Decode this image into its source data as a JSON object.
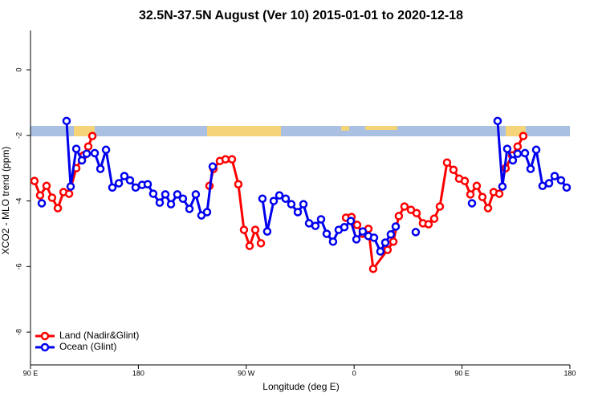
{
  "chart_data": {
    "type": "line",
    "title": "32.5N-37.5N August (Ver 10)   2015-01-01 to 2020-12-18",
    "x_label": "Longitude (deg E)",
    "y_label": "XCO2 - MLO trend (ppm)",
    "xlim": [
      90,
      540
    ],
    "ylim": [
      -9,
      1.2
    ],
    "xticks": [
      {
        "value": 90,
        "label": "90 E"
      },
      180,
      {
        "value": 270,
        "label": "90 W"
      },
      {
        "value": 360,
        "label": "0"
      },
      {
        "value": 450,
        "label": "90 E"
      },
      {
        "value": 540,
        "label": "180"
      }
    ],
    "yticks": [
      -8,
      -6,
      -4,
      -2,
      0
    ],
    "legend": "bottom-left",
    "series": [
      {
        "name": "Land (Nadir&Glint)",
        "color": "#ff0000",
        "x": [
          93.3,
          98.0,
          103.4,
          108.0,
          112.8,
          117.5,
          122.2,
          128.2,
          134.3,
          138.2,
          141.6,
          null,
          239.3,
          242.7,
          248.0,
          252.7,
          258.1,
          263.4,
          268.1,
          272.8,
          277.5,
          282.2,
          null,
          353.2,
          357.8,
          362.5,
          367.2,
          371.9,
          375.9,
          387.9,
          392.7,
          397.3,
          402.0,
          407.4,
          412.1,
          417.4,
          422.1,
          426.8,
          431.5,
          437.5,
          442.9,
          447.6,
          452.3,
          457.0,
          462.3,
          467.0,
          471.7,
          476.4,
          481.1,
          486.4,
          491.8,
          496.4,
          501.1
        ],
        "values": [
          -3.39,
          -3.83,
          -3.54,
          -3.9,
          -4.22,
          -3.73,
          -3.78,
          -3.0,
          -2.61,
          -2.34,
          -2.02,
          null,
          -3.54,
          -3.02,
          -2.78,
          -2.73,
          -2.73,
          -3.49,
          -4.88,
          -5.37,
          -4.88,
          -5.29,
          null,
          -4.51,
          -4.49,
          -4.73,
          -5.0,
          -4.85,
          -6.07,
          -5.49,
          -5.24,
          -4.46,
          -4.17,
          -4.27,
          -4.37,
          -4.68,
          -4.71,
          -4.54,
          -4.17,
          -2.83,
          -3.05,
          -3.32,
          -3.39,
          -3.8,
          -3.54,
          -3.88,
          -4.22,
          -3.73,
          -3.78,
          -3.0,
          -2.61,
          -2.34,
          -2.02
        ]
      },
      {
        "name": "Ocean (Glint)",
        "color": "#0000ee",
        "x": [
          99.4,
          null,
          120.1,
          123.5,
          128.2,
          132.9,
          136.9,
          143.6,
          148.3,
          153.0,
          158.3,
          163.7,
          168.3,
          173.0,
          177.7,
          183.1,
          187.8,
          192.4,
          197.8,
          202.5,
          207.2,
          212.5,
          217.2,
          222.6,
          227.9,
          232.6,
          237.3,
          242.0,
          null,
          283.5,
          287.5,
          292.9,
          297.6,
          302.9,
          307.6,
          313.0,
          317.7,
          322.4,
          327.7,
          332.4,
          337.1,
          342.4,
          347.1,
          351.8,
          357.2,
          361.9,
          367.2,
          371.9,
          376.6,
          381.9,
          386.0,
          390.6,
          394.7,
          null,
          411.4,
          null,
          458.3,
          null,
          479.7,
          483.7,
          487.7,
          492.4,
          496.4,
          502.5,
          507.2,
          511.9,
          517.2,
          522.6,
          527.3,
          532.6,
          537.3
        ],
        "values": [
          -4.07,
          null,
          -1.56,
          -3.56,
          -2.41,
          -2.76,
          -2.56,
          -2.54,
          -3.02,
          -2.44,
          -3.59,
          -3.46,
          -3.24,
          -3.37,
          -3.59,
          -3.51,
          -3.49,
          -3.78,
          -4.05,
          -3.8,
          -4.1,
          -3.8,
          -3.93,
          -4.24,
          -3.8,
          -4.44,
          -4.34,
          -2.95,
          null,
          -3.93,
          -4.93,
          -4.0,
          -3.83,
          -3.93,
          -4.1,
          -4.34,
          -4.1,
          -4.68,
          -4.76,
          -4.56,
          -5.0,
          -5.24,
          -4.88,
          -4.8,
          -4.61,
          -5.17,
          -4.93,
          -5.07,
          -5.12,
          -5.54,
          -5.27,
          -5.02,
          -4.78,
          null,
          -4.95,
          null,
          -4.07,
          null,
          -1.56,
          -3.56,
          -2.41,
          -2.76,
          -2.56,
          -2.54,
          -3.02,
          -2.44,
          -3.54,
          -3.46,
          -3.24,
          -3.37,
          -3.59
        ]
      }
    ]
  }
}
